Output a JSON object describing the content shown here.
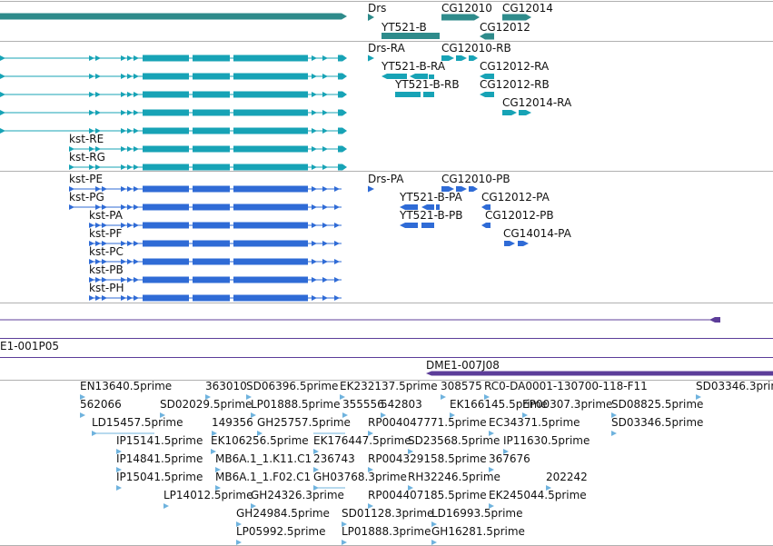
{
  "colors": {
    "gene": "#2e8b8b",
    "mrna": "#17a3b6",
    "protein": "#2f6bd6",
    "ruler": "#5c3d99",
    "est": "#6fb3de",
    "line": "#b0b0b0",
    "text": "#111111"
  },
  "tracks": {
    "genes": {
      "labels": [
        "Drs",
        "YT521-B",
        "CG12010",
        "CG12014",
        "CG12012"
      ]
    },
    "transcripts": {
      "labels": [
        "Drs-RA",
        "CG12010-RB",
        "YT521-B-RA",
        "CG12012-RA",
        "YT521-B-RB",
        "CG12012-RB",
        "CG12014-RA",
        "kst-RE",
        "kst-RG"
      ]
    },
    "proteins": {
      "labels": [
        "kst-PE",
        "Drs-PA",
        "CG12010-PB",
        "kst-PG",
        "YT521-B-PA",
        "CG12012-PA",
        "kst-PA",
        "YT521-B-PB",
        "CG12012-PB",
        "kst-PF",
        "CG14014-PA",
        "kst-PC",
        "kst-PB",
        "kst-PH"
      ]
    },
    "clones": {
      "left_label": "E1-001P05",
      "right_label": "DME1-007J08"
    },
    "ests": {
      "labels": [
        "EN13640.5prime",
        "363010",
        "SD06396.5prime",
        "EK232137.5prime",
        "308575",
        "RC0-DA0001-130700-118-F11",
        "SD03346.3prime",
        "562066",
        "SD02029.5prime",
        "LP01888.5prime",
        "355556",
        "542803",
        "EK166145.5prime",
        "EP00307.3prime",
        "SD08825.5prime",
        "LD15457.5prime",
        "149356",
        "GH25757.5prime",
        "RP004047771.5prime",
        "EC34371.5prime",
        "SD03346.5prime",
        "IP15141.5prime",
        "EK106256.5prime",
        "EK176447.5prime",
        "SD23568.5prime",
        "IP11630.5prime",
        "IP14841.5prime",
        "MB6A.1_1.K11.C1",
        "236743",
        "RP004329158.5prime",
        "367676",
        "IP15041.5prime",
        "MB6A.1_1.F02.C1",
        "GH03768.3prime",
        "RH32246.5prime",
        "202242",
        "LP14012.5prime",
        "GH24326.3prime",
        "RP004407185.5prime",
        "EK245044.5prime",
        "GH24984.5prime",
        "SD01128.3prime",
        "LD16993.5prime",
        "LP05992.5prime",
        "LP01888.3prime",
        "GH16281.5prime"
      ]
    }
  }
}
